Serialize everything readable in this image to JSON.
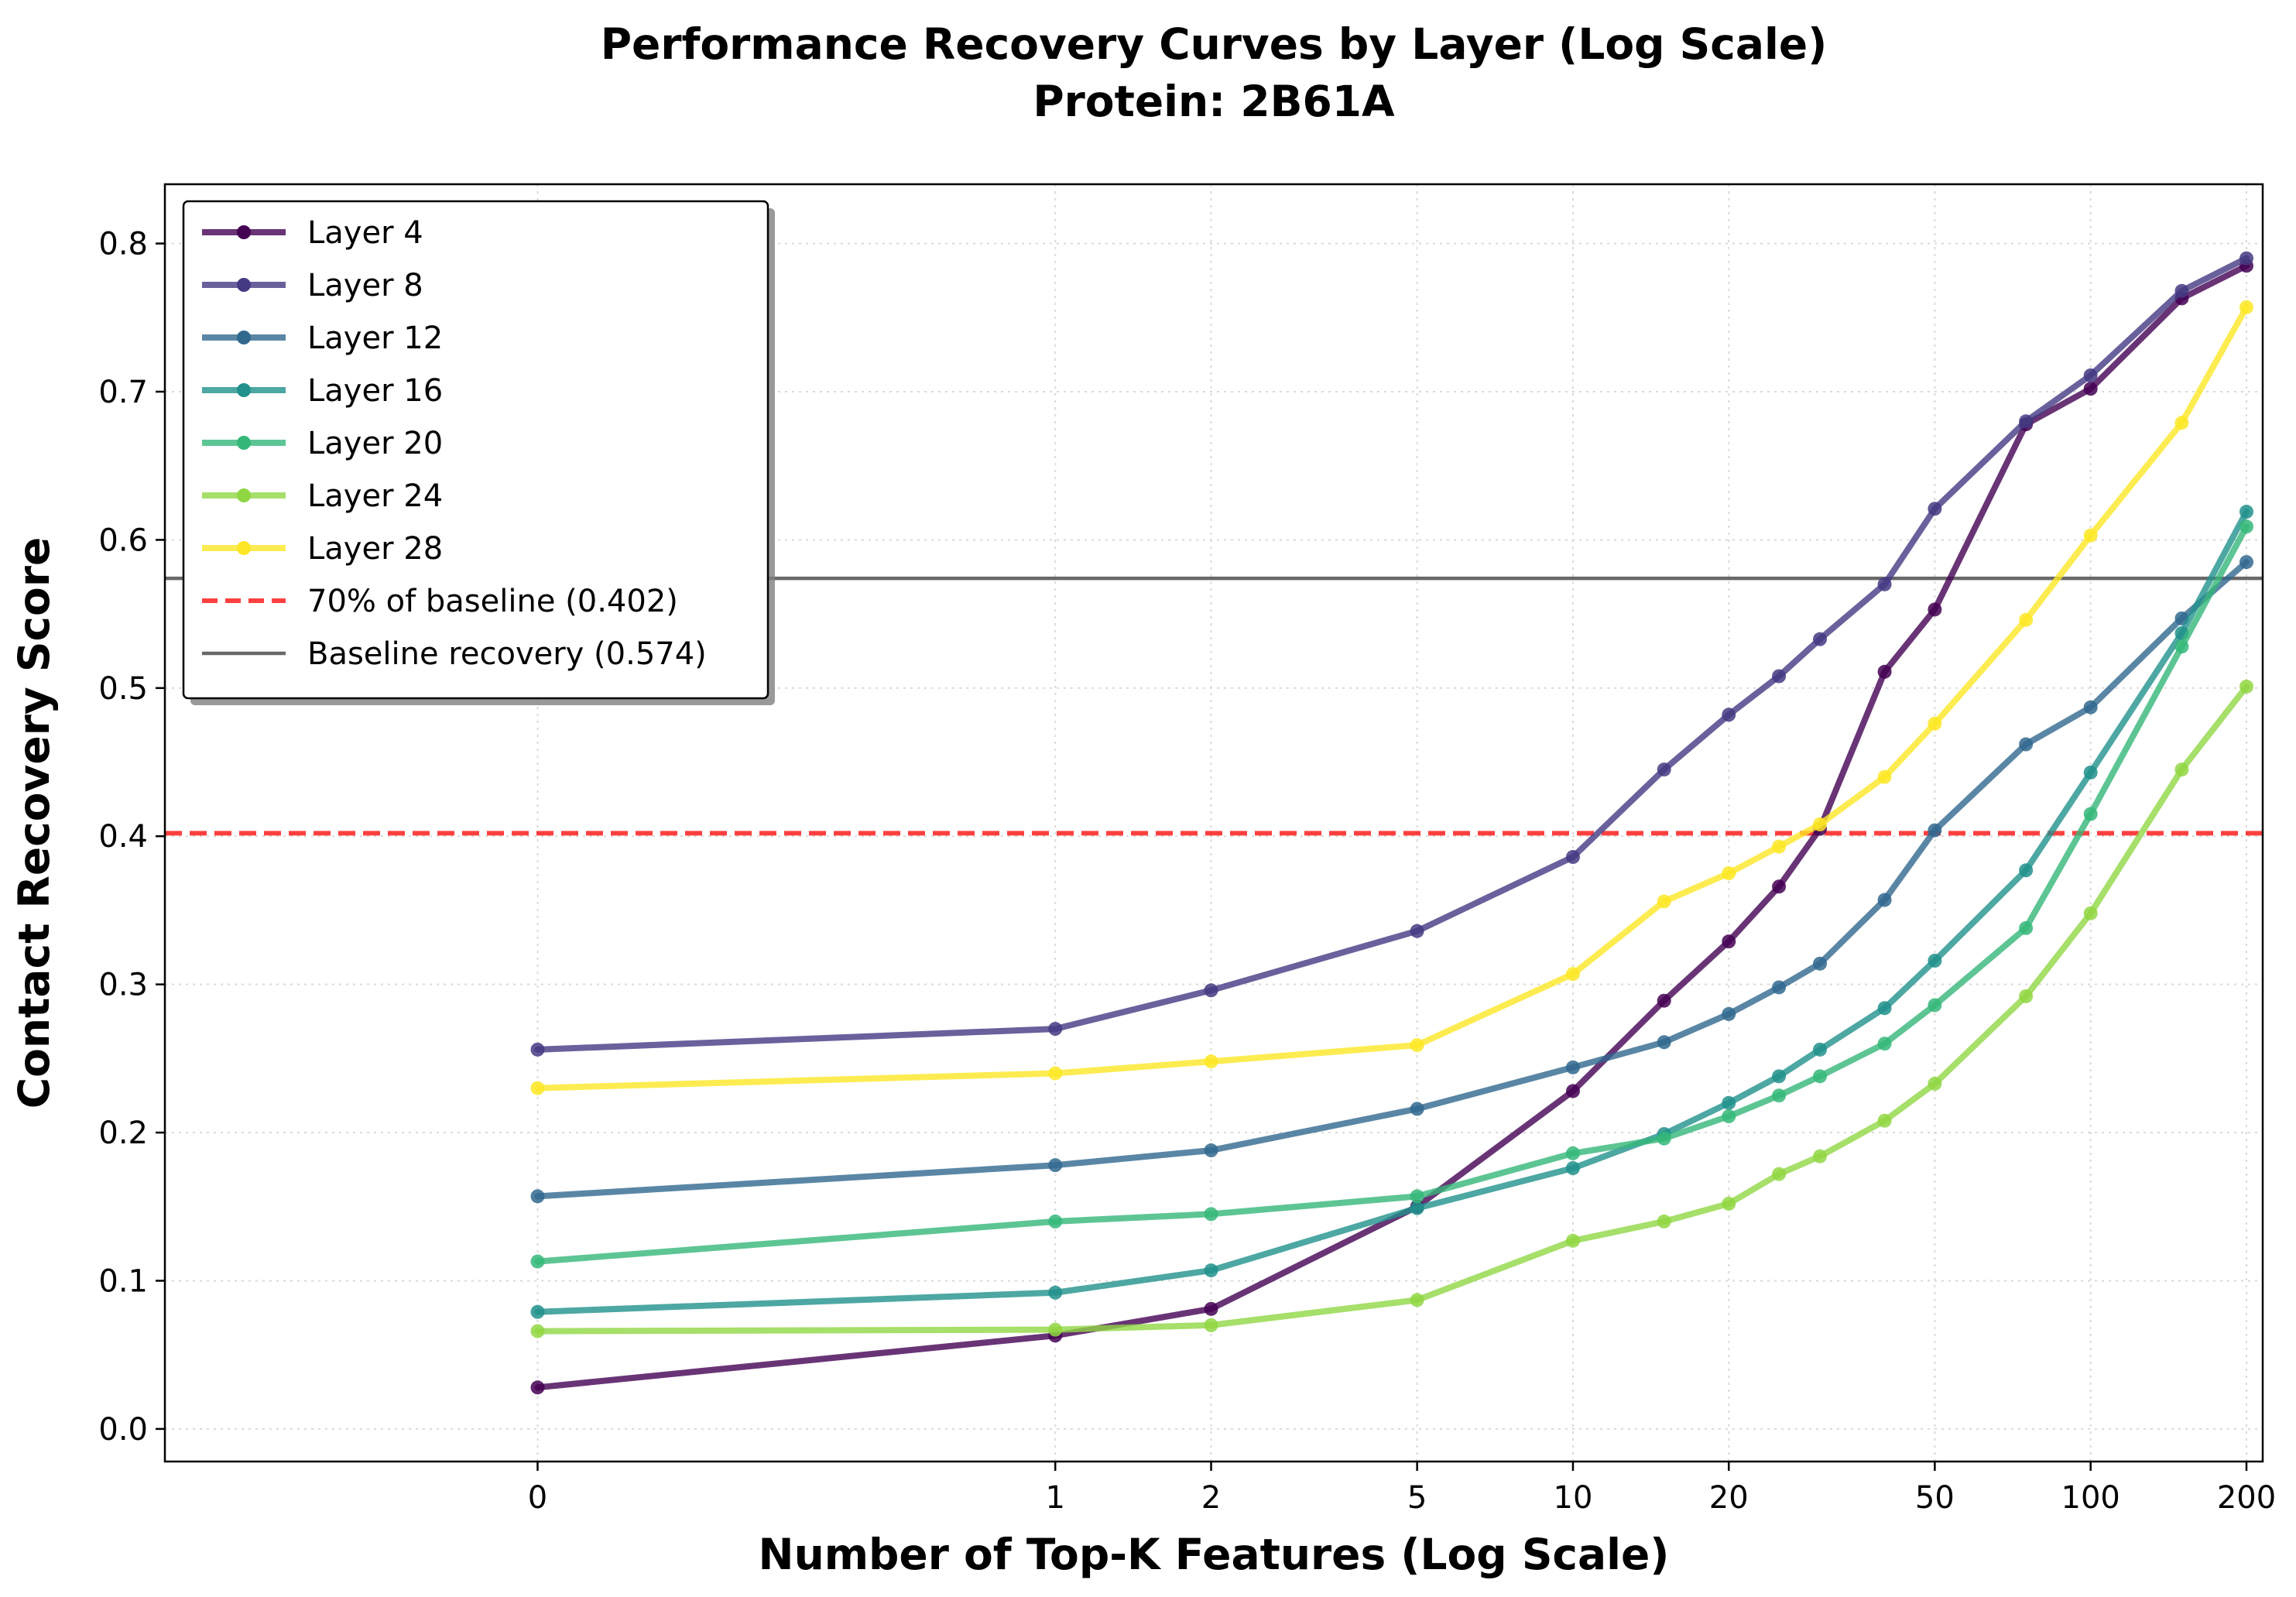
{
  "chart_data": {
    "type": "line",
    "title": "Performance Recovery Curves by Layer (Log Scale)",
    "subtitle": "Protein: 2B61A",
    "xlabel": "Number of Top-K Features (Log Scale)",
    "ylabel": "Contact Recovery Score",
    "x_scale": "symlog",
    "xlim": [
      -0.72,
      215
    ],
    "ylim": [
      -0.022,
      0.84
    ],
    "x_ticks": [
      0,
      1,
      2,
      5,
      10,
      20,
      50,
      100,
      200
    ],
    "x_tick_labels": [
      "0",
      "1",
      "2",
      "5",
      "10",
      "20",
      "50",
      "100",
      "200"
    ],
    "y_ticks": [
      0.0,
      0.1,
      0.2,
      0.3,
      0.4,
      0.5,
      0.6,
      0.7,
      0.8
    ],
    "y_tick_labels": [
      "0.0",
      "0.1",
      "0.2",
      "0.3",
      "0.4",
      "0.5",
      "0.6",
      "0.7",
      "0.8"
    ],
    "grid": true,
    "legend_position": "upper-left",
    "x": [
      0,
      1,
      2,
      5,
      10,
      15,
      20,
      25,
      30,
      40,
      50,
      75,
      100,
      150,
      200
    ],
    "series": [
      {
        "name": "Layer 4",
        "color": "#440154",
        "values": [
          0.028,
          0.063,
          0.081,
          0.15,
          0.228,
          0.289,
          0.329,
          0.366,
          0.405,
          0.511,
          0.553,
          0.678,
          0.702,
          0.763,
          0.785
        ]
      },
      {
        "name": "Layer 8",
        "color": "#443983",
        "values": [
          0.256,
          0.27,
          0.296,
          0.336,
          0.386,
          0.445,
          0.482,
          0.508,
          0.533,
          0.57,
          0.621,
          0.68,
          0.711,
          0.768,
          0.79
        ]
      },
      {
        "name": "Layer 12",
        "color": "#31688e",
        "values": [
          0.157,
          0.178,
          0.188,
          0.216,
          0.244,
          0.261,
          0.28,
          0.298,
          0.314,
          0.357,
          0.404,
          0.462,
          0.487,
          0.547,
          0.585
        ]
      },
      {
        "name": "Layer 16",
        "color": "#21918c",
        "values": [
          0.079,
          0.092,
          0.107,
          0.149,
          0.176,
          0.199,
          0.22,
          0.238,
          0.256,
          0.284,
          0.316,
          0.377,
          0.443,
          0.537,
          0.619
        ]
      },
      {
        "name": "Layer 20",
        "color": "#35b779",
        "values": [
          0.113,
          0.14,
          0.145,
          0.157,
          0.186,
          0.196,
          0.211,
          0.225,
          0.238,
          0.26,
          0.286,
          0.338,
          0.415,
          0.528,
          0.609
        ]
      },
      {
        "name": "Layer 24",
        "color": "#90d743",
        "values": [
          0.066,
          0.067,
          0.07,
          0.087,
          0.127,
          0.14,
          0.152,
          0.172,
          0.184,
          0.208,
          0.233,
          0.292,
          0.348,
          0.445,
          0.501
        ]
      },
      {
        "name": "Layer 28",
        "color": "#fde725",
        "values": [
          0.23,
          0.24,
          0.248,
          0.259,
          0.307,
          0.356,
          0.375,
          0.393,
          0.408,
          0.44,
          0.476,
          0.546,
          0.603,
          0.679,
          0.757
        ]
      }
    ],
    "reference_lines": [
      {
        "name": "70% of baseline (0.402)",
        "value": 0.402,
        "color": "#ff0000",
        "style": "dashed"
      },
      {
        "name": "Baseline recovery (0.574)",
        "value": 0.574,
        "color": "#4d4d4d",
        "style": "solid"
      }
    ]
  }
}
